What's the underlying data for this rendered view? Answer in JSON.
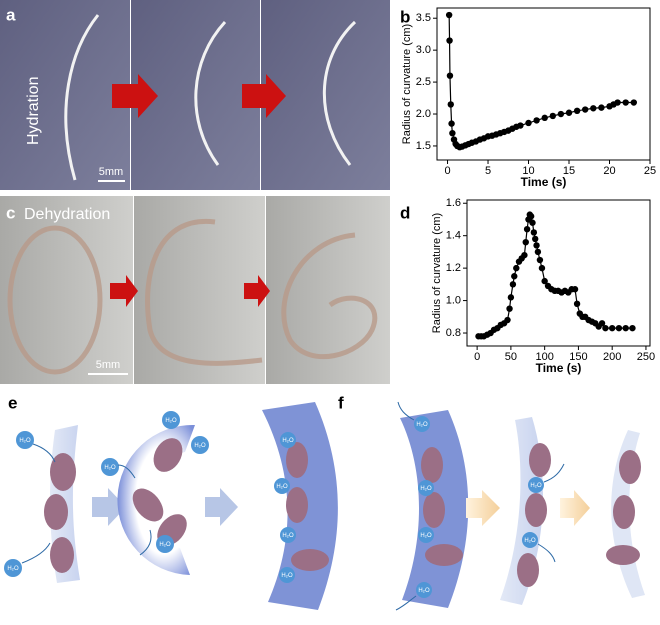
{
  "photos": {
    "hydration": {
      "panel_label": "a",
      "caption": "Hydration",
      "scale_bar": "5mm"
    },
    "dehydration": {
      "panel_label": "c",
      "caption": "Dehydration",
      "scale_bar": "5mm"
    }
  },
  "diagrams": {
    "hydration": {
      "panel_label": "e"
    },
    "dehydration": {
      "panel_label": "f"
    },
    "water_label": "H₂O"
  },
  "chart_data": [
    {
      "type": "line",
      "marker": true,
      "panel_label": "b",
      "color": "#000000",
      "x_label": "Time (s)",
      "y_label": "Radius of curvature (cm)",
      "x": [
        0.2,
        0.25,
        0.3,
        0.4,
        0.5,
        0.6,
        0.8,
        1.0,
        1.2,
        1.5,
        1.8,
        2.2,
        2.6,
        3.0,
        3.5,
        4.0,
        4.5,
        5.0,
        5.5,
        6.0,
        6.5,
        7.0,
        7.5,
        8.0,
        8.5,
        9.0,
        10.0,
        11.0,
        12.0,
        13.0,
        14.0,
        15.0,
        16.0,
        17.0,
        18.0,
        19.0,
        20.0,
        20.5,
        21.0,
        22.0,
        23.0
      ],
      "values": [
        3.55,
        3.15,
        2.6,
        2.15,
        1.85,
        1.7,
        1.6,
        1.53,
        1.5,
        1.48,
        1.49,
        1.51,
        1.53,
        1.55,
        1.57,
        1.6,
        1.62,
        1.65,
        1.66,
        1.68,
        1.7,
        1.72,
        1.74,
        1.77,
        1.8,
        1.82,
        1.86,
        1.9,
        1.94,
        1.97,
        2.0,
        2.02,
        2.05,
        2.07,
        2.09,
        2.1,
        2.12,
        2.15,
        2.18,
        2.18,
        2.18
      ],
      "xlim": [
        -1.3,
        25
      ],
      "ylim": [
        1.28,
        3.66
      ],
      "xticks": [
        0,
        5,
        10,
        15,
        20,
        25
      ],
      "yticks": [
        1.5,
        {
          "value": 2,
          "label": "2.0"
        },
        2.5,
        {
          "value": 3,
          "label": "3.0"
        },
        3.5
      ]
    },
    {
      "type": "line",
      "marker": true,
      "panel_label": "d",
      "color": "#000000",
      "x_label": "Time (s)",
      "y_label": "Radius of curvature (cm)",
      "x": [
        2,
        6,
        10,
        15,
        20,
        25,
        30,
        35,
        40,
        45,
        48,
        50,
        53,
        55,
        58,
        62,
        66,
        70,
        72,
        74,
        76,
        78,
        80,
        82,
        84,
        86,
        88,
        90,
        93,
        96,
        100,
        105,
        110,
        115,
        120,
        125,
        130,
        135,
        140,
        145,
        148,
        152,
        156,
        160,
        165,
        170,
        175,
        180,
        185,
        190,
        200,
        210,
        220,
        230
      ],
      "values": [
        0.78,
        0.78,
        0.78,
        0.79,
        0.8,
        0.82,
        0.83,
        0.85,
        0.86,
        0.88,
        0.95,
        1.02,
        1.1,
        1.15,
        1.2,
        1.24,
        1.26,
        1.28,
        1.36,
        1.44,
        1.5,
        1.53,
        1.52,
        1.48,
        1.42,
        1.38,
        1.34,
        1.3,
        1.25,
        1.2,
        1.12,
        1.09,
        1.07,
        1.06,
        1.06,
        1.05,
        1.06,
        1.05,
        1.07,
        1.07,
        0.98,
        0.92,
        0.9,
        0.9,
        0.88,
        0.87,
        0.86,
        0.84,
        0.86,
        0.83,
        0.83,
        0.83,
        0.83,
        0.83
      ],
      "xlim": [
        -15,
        256
      ],
      "ylim": [
        0.72,
        1.62
      ],
      "xticks": [
        0,
        50,
        100,
        150,
        200,
        250
      ],
      "yticks": [
        0.8,
        {
          "value": 1,
          "label": "1.0"
        },
        1.2,
        1.4,
        1.6
      ]
    }
  ]
}
